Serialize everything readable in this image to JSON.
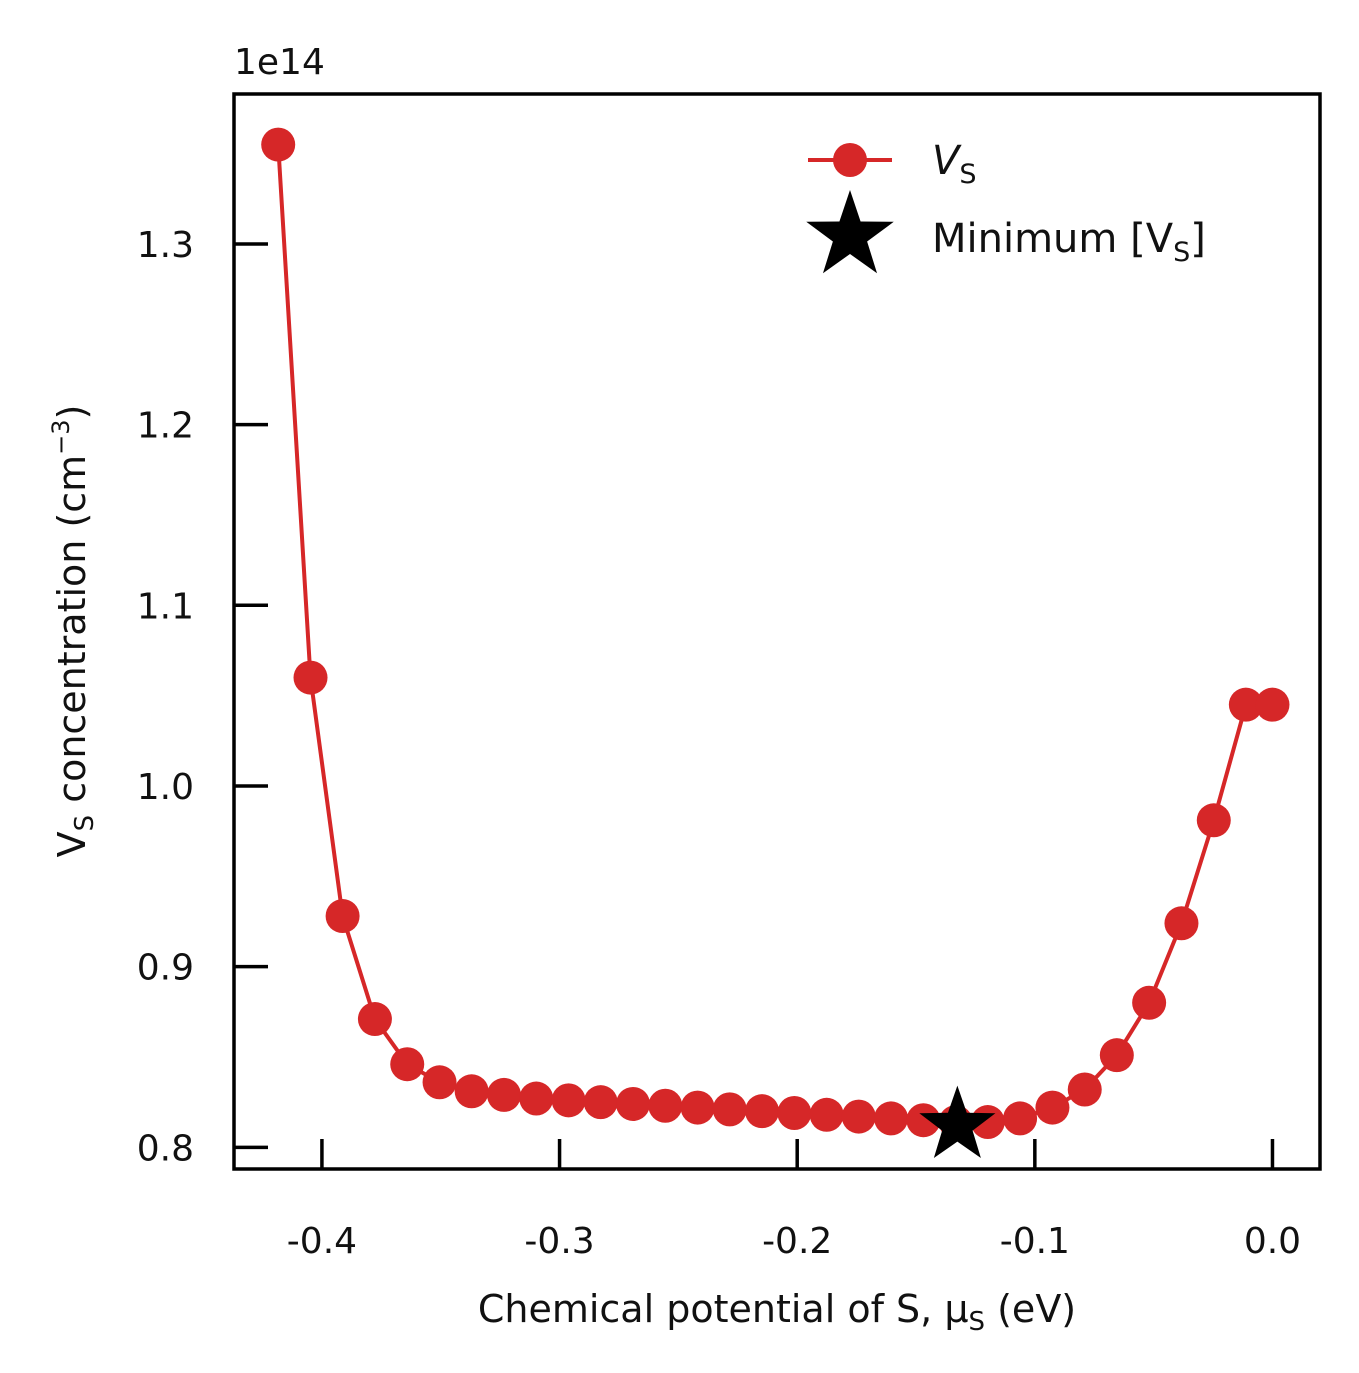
{
  "chart_data": {
    "type": "line",
    "offset_text": "1e14",
    "xlabel": {
      "main": "Chemical potential of S, μ",
      "sub": "S",
      "tail": " (eV)"
    },
    "ylabel": {
      "main": "V",
      "sub": "S",
      "mid": " concentration (cm",
      "sup": "−3",
      "tail": ")"
    },
    "xlim": [
      -0.437,
      0.02
    ],
    "ylim": [
      0.788,
      1.383
    ],
    "xticks": [
      -0.4,
      -0.3,
      -0.2,
      -0.1,
      0.0
    ],
    "xtick_labels": [
      "-0.4",
      "-0.3",
      "-0.2",
      "-0.1",
      "0.0"
    ],
    "yticks": [
      0.8,
      0.9,
      1.0,
      1.1,
      1.2,
      1.3
    ],
    "ytick_labels": [
      "0.8",
      "0.9",
      "1.0",
      "1.1",
      "1.2",
      "1.3"
    ],
    "grid": false,
    "legend_placement": "top-right",
    "series": [
      {
        "legend_main": "V",
        "legend_sub": "S",
        "color": "#d62728",
        "marker": "circle",
        "x": [
          -0.4184,
          -0.4048,
          -0.3913,
          -0.3777,
          -0.3641,
          -0.3505,
          -0.337,
          -0.3234,
          -0.3098,
          -0.2962,
          -0.2827,
          -0.2691,
          -0.2555,
          -0.2419,
          -0.2284,
          -0.2148,
          -0.2012,
          -0.1876,
          -0.1741,
          -0.1605,
          -0.1469,
          -0.1333,
          -0.1198,
          -0.1062,
          -0.0926,
          -0.079,
          -0.0655,
          -0.0519,
          -0.0383,
          -0.0247,
          -0.0112,
          0.0
        ],
        "y": [
          1.355,
          1.06,
          0.928,
          0.871,
          0.846,
          0.836,
          0.831,
          0.829,
          0.827,
          0.826,
          0.825,
          0.824,
          0.823,
          0.822,
          0.821,
          0.82,
          0.819,
          0.818,
          0.817,
          0.816,
          0.815,
          0.814,
          0.814,
          0.816,
          0.822,
          0.832,
          0.851,
          0.88,
          0.924,
          0.981,
          1.045,
          1.045
        ]
      }
    ],
    "minimum": {
      "legend_main": "Minimum [V",
      "legend_sub": "S",
      "legend_tail": "]",
      "x": -0.1326,
      "y": 0.812,
      "color": "#000000",
      "marker": "star"
    }
  }
}
